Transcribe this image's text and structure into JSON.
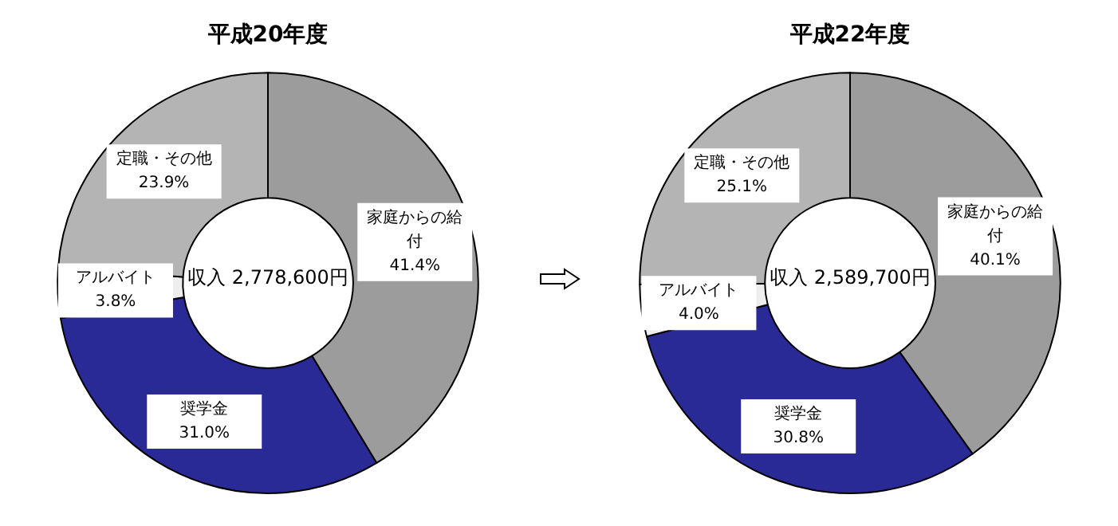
{
  "chart_data": [
    {
      "type": "donut",
      "title": "平成20年度",
      "categories": [
        "家庭からの給付",
        "奨学金",
        "アルバイト",
        "定職・その他"
      ],
      "values": [
        41.4,
        31.0,
        3.8,
        23.9
      ],
      "colors": [
        "#9c9c9c",
        "#2a2a96",
        "#eeeeee",
        "#b4b4b4"
      ],
      "value_labels": [
        "41.4%",
        "31.0%",
        "3.8%",
        "23.9%"
      ],
      "annotations": [
        "収入 2,778,600円"
      ]
    },
    {
      "type": "donut",
      "title": "平成22年度",
      "categories": [
        "家庭からの給付",
        "奨学金",
        "アルバイト",
        "定職・その他"
      ],
      "values": [
        40.1,
        30.8,
        4.0,
        25.1
      ],
      "colors": [
        "#9c9c9c",
        "#2a2a96",
        "#eeeeee",
        "#b4b4b4"
      ],
      "value_labels": [
        "40.1%",
        "30.8%",
        "4.0%",
        "25.1%"
      ],
      "annotations": [
        "収入 2,589,700円"
      ]
    }
  ]
}
